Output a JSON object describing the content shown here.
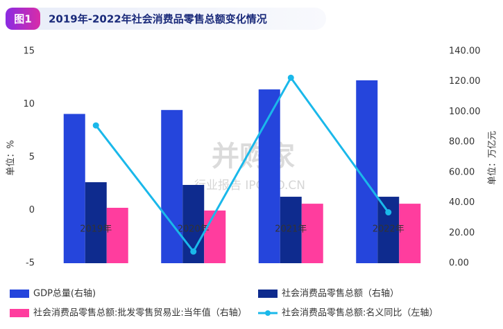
{
  "badge": "图1",
  "chart_data": {
    "type": "combo",
    "title": "2019年-2022年社会消费品零售总额变化情况",
    "y_label": "单位：%",
    "y2_label": "单位：万亿元",
    "watermark": [
      "并购家",
      "行业报告 IPOIPO.CN"
    ],
    "categories": [
      "2019年",
      "2020年",
      "2021年",
      "2022年"
    ],
    "ylim": [
      -5,
      15
    ],
    "yticks": [
      -5,
      0,
      5,
      10,
      15
    ],
    "y2lim": [
      0,
      140
    ],
    "y2ticks": [
      {
        "value": 0,
        "label": "0.00"
      },
      {
        "value": 20,
        "label": "20.00"
      },
      {
        "value": 40,
        "label": "40.00"
      },
      {
        "value": 60,
        "label": "60.00"
      },
      {
        "value": 80,
        "label": "80.00"
      },
      {
        "value": 100,
        "label": "100.00"
      },
      {
        "value": 120,
        "label": "120.00"
      },
      {
        "value": 140,
        "label": "140.00"
      }
    ],
    "series": [
      {
        "name": "GDP总量(右轴)",
        "type": "bar",
        "axis": "y2",
        "color": "#2545dc",
        "values": [
          98.6,
          101.2,
          114.8,
          120.8
        ]
      },
      {
        "name": "社会消费品零售总额（右轴）",
        "type": "bar",
        "axis": "y2",
        "color": "#0e2b8e",
        "values": [
          53.5,
          51.7,
          43.9,
          43.9
        ]
      },
      {
        "name": "社会消费品零售总额:批发零售贸易业:当年值（右轴）",
        "type": "bar",
        "axis": "y2",
        "color": "#ff3d9e",
        "values": [
          36.6,
          34.8,
          39.3,
          39.3
        ]
      },
      {
        "name": "社会消费品零售总额:名义同比（左轴）",
        "type": "line",
        "axis": "y",
        "color": "#1ab8ea",
        "values": [
          8.0,
          -3.9,
          12.5,
          -0.2
        ]
      }
    ]
  }
}
